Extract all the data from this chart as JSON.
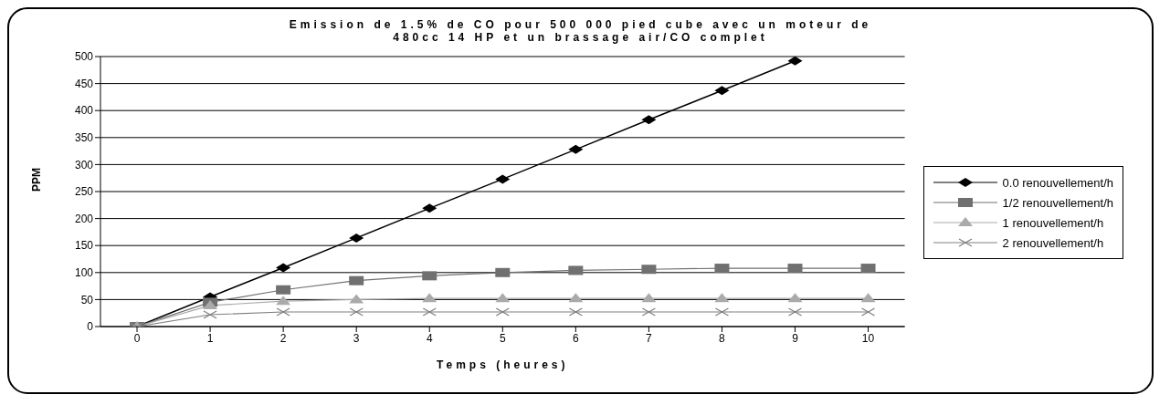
{
  "chart_data": {
    "type": "line",
    "title": "Emission de 1.5% de CO pour 500 000 pied cube avec un moteur de 480cc 14 HP et un brassage air/CO complet",
    "xlabel": "Temps (heures)",
    "ylabel": "PPM",
    "categories": [
      "0",
      "1",
      "2",
      "3",
      "4",
      "5",
      "6",
      "7",
      "8",
      "9",
      "10"
    ],
    "series": [
      {
        "name": "0.0 renouvellement/h",
        "color": "#000000",
        "marker": "diamond",
        "values": [
          0,
          55,
          109,
          164,
          219,
          273,
          328,
          383,
          437,
          492,
          null
        ]
      },
      {
        "name": "1/2 renouvellement/h",
        "color": "#707070",
        "marker": "square",
        "values": [
          0,
          45,
          68,
          85,
          94,
          100,
          104,
          106,
          108,
          108,
          108
        ]
      },
      {
        "name": "1 renouvellement/h",
        "color": "#aaaaaa",
        "marker": "triangle",
        "values": [
          0,
          39,
          47,
          50,
          52,
          52,
          52,
          52,
          52,
          52,
          52
        ]
      },
      {
        "name": "2 renouvellement/h",
        "color": "#808080",
        "marker": "cross",
        "values": [
          0,
          22,
          27,
          27,
          27,
          27,
          27,
          27,
          27,
          27,
          27
        ]
      }
    ],
    "ylim": [
      0,
      500
    ],
    "yticks": [
      0,
      50,
      100,
      150,
      200,
      250,
      300,
      350,
      400,
      450,
      500
    ],
    "grid": "y",
    "legend": "right",
    "line_style": "solid"
  }
}
